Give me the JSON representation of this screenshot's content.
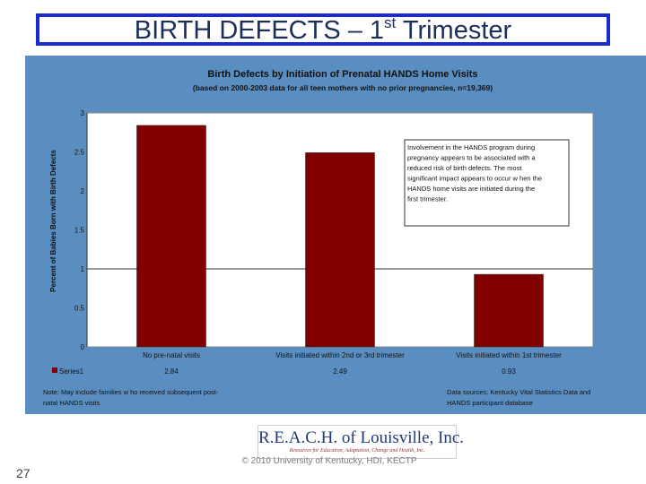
{
  "slide": {
    "title_main": "BIRTH DEFECTS – 1",
    "title_sup": "st",
    "title_end": " Trimester",
    "page_number": "27",
    "copyright": "© 2010 University of Kentucky, HDI, KECTP"
  },
  "logo": {
    "name": "R.E.A.C.H. of Louisville, Inc.",
    "tagline": "Resources for Education, Adaptation, Change and Health, Inc."
  },
  "chart_data": {
    "type": "bar",
    "title": "Birth Defects by Initiation of  Prenatal HANDS Home Visits",
    "subtitle": "(based on 2000-2003 data for all teen mothers with no prior pregnancies, n=19,369)",
    "ylabel": "Percent of Babies Born with Birth Defects",
    "xlabel": "",
    "categories": [
      "No pre-natal visits",
      "Visits initiated within 2nd or 3rd trimester",
      "Visits initiated within 1st trimester"
    ],
    "series": [
      {
        "name": "Series1",
        "values": [
          2.84,
          2.49,
          0.93
        ],
        "value_labels": [
          "2.84",
          "2.49",
          "0.93"
        ]
      }
    ],
    "ylim": [
      0,
      3
    ],
    "yticks": [
      "0",
      "0.5",
      "1",
      "1.5",
      "2",
      "2.5",
      "3"
    ],
    "gridlines": [
      1
    ],
    "bar_color": "#800000",
    "plot_bg": "#ffffff",
    "panel_bg": "#5b8ec0",
    "legend": "data-table-left",
    "annotation": [
      "Involvement in the HANDS program during",
      "pregnancy appears to be associated with a",
      "reduced  risk of birth defects.  The most",
      "significant impact appears to occur w hen the",
      "HANDS home visits are initiated during the",
      "first trimester."
    ],
    "note": [
      "Note: May include families w ho received subsequent post-",
      "natal HANDS visits"
    ],
    "sources": [
      "Data sources: Kentucky Vital Statistics Data and",
      "HANDS participant database"
    ]
  }
}
